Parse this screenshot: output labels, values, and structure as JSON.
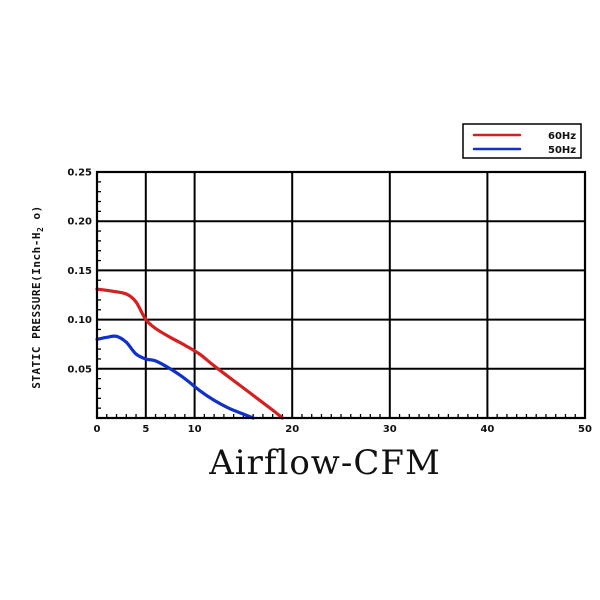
{
  "chart_data": {
    "type": "line",
    "title": "",
    "xlabel": "Airflow-CFM",
    "ylabel_main": "STATIC PRESSURE(Inch-H",
    "ylabel_sub": "2",
    "ylabel_end": " o)",
    "xlim": [
      0,
      50
    ],
    "ylim": [
      0,
      0.25
    ],
    "xticks": [
      0,
      5,
      10,
      20,
      30,
      40,
      50
    ],
    "xtick_labels": [
      "0",
      "5",
      "10",
      "20",
      "30",
      "40",
      "50"
    ],
    "yticks": [
      0.05,
      0.1,
      0.15,
      0.2,
      0.25
    ],
    "ytick_labels": [
      "0.05",
      "0.10",
      "0.15",
      "0.20",
      "0.25"
    ],
    "grid": true,
    "legend_position": "top-right",
    "series": [
      {
        "name": "60Hz",
        "color": "#d42020",
        "x": [
          0,
          1.5,
          3,
          4,
          5,
          6,
          7.5,
          9,
          10.5,
          12,
          14,
          16,
          18,
          19
        ],
        "y": [
          0.131,
          0.129,
          0.126,
          0.118,
          0.1,
          0.091,
          0.082,
          0.074,
          0.065,
          0.053,
          0.038,
          0.023,
          0.008,
          0
        ]
      },
      {
        "name": "50Hz",
        "color": "#1030c8",
        "x": [
          0,
          1,
          2,
          3,
          4,
          5,
          6,
          7.5,
          9,
          10.5,
          12,
          13.5,
          15,
          16
        ],
        "y": [
          0.08,
          0.082,
          0.083,
          0.077,
          0.065,
          0.06,
          0.058,
          0.05,
          0.04,
          0.028,
          0.018,
          0.01,
          0.004,
          0
        ]
      }
    ]
  }
}
